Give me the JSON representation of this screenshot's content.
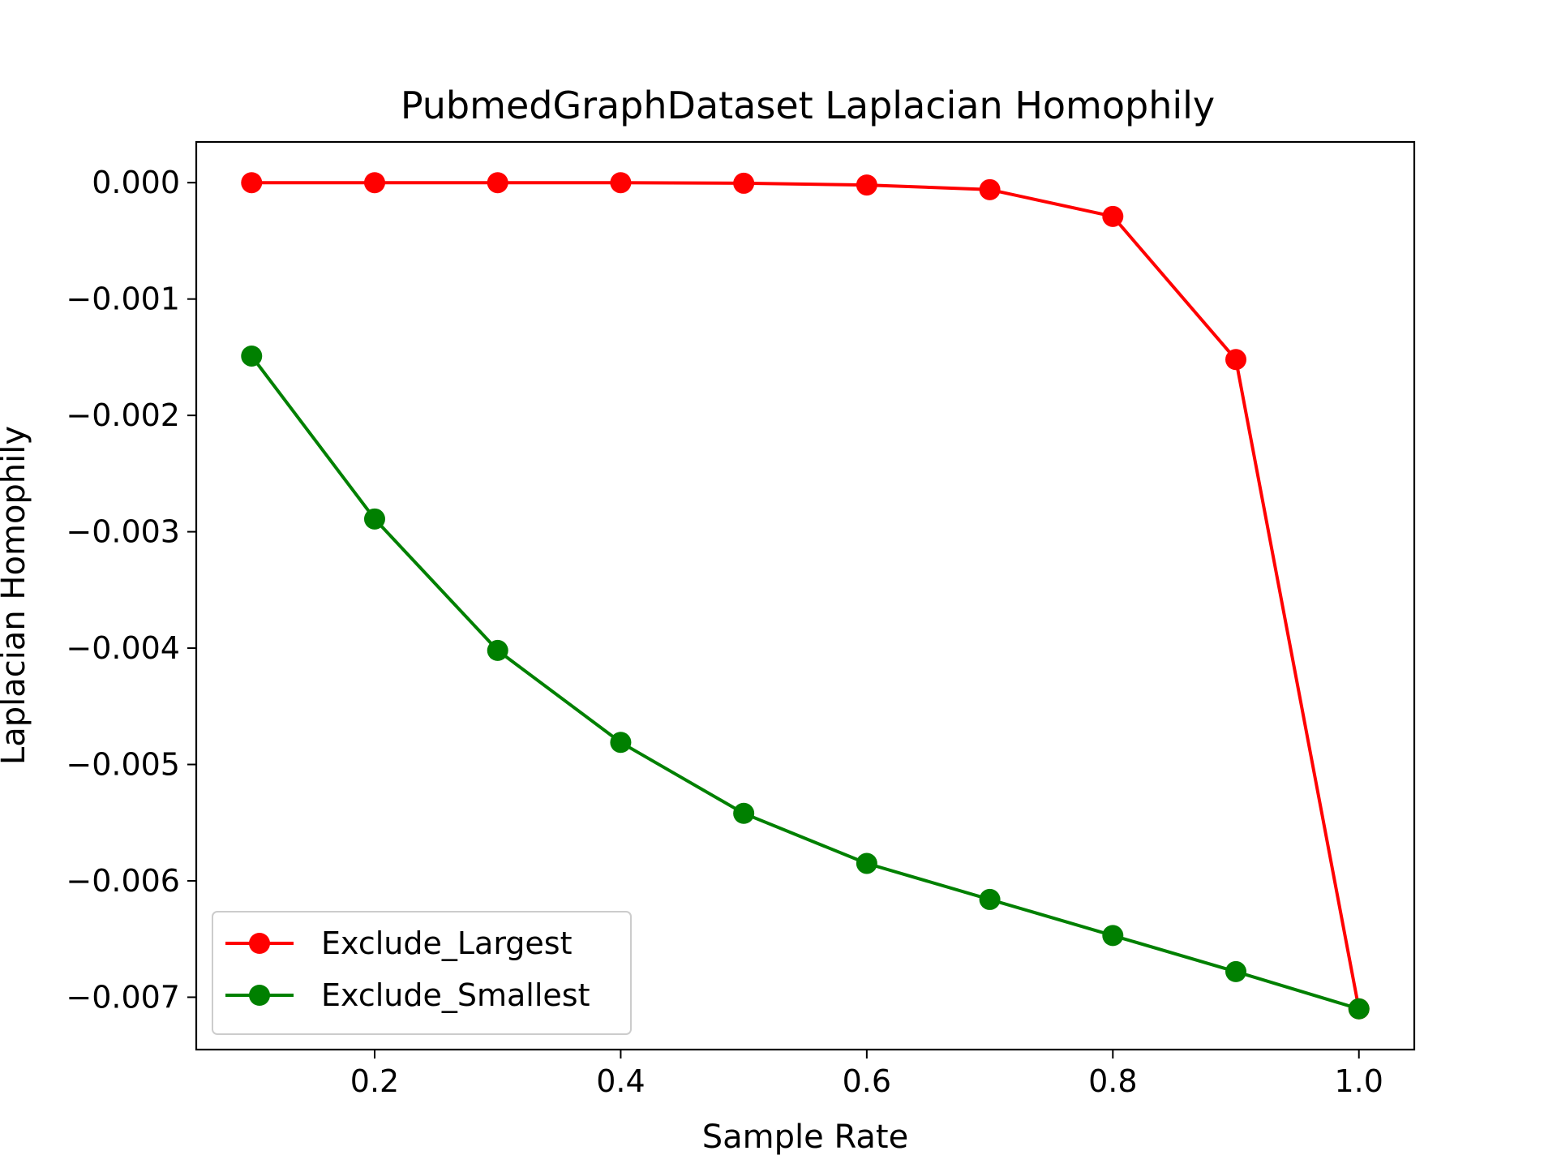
{
  "chart_data": {
    "type": "line",
    "title": "PubmedGraphDataset Laplacian Homophily",
    "xlabel": "Sample Rate",
    "ylabel": "Laplacian Homophily",
    "x": [
      0.1,
      0.2,
      0.3,
      0.4,
      0.5,
      0.6,
      0.7,
      0.8,
      0.9,
      1.0
    ],
    "xlim": [
      0.055,
      1.045
    ],
    "ylim": [
      -0.00745,
      0.00035
    ],
    "xticks": [
      0.2,
      0.4,
      0.6,
      0.8,
      1.0
    ],
    "xtick_labels": [
      "0.2",
      "0.4",
      "0.6",
      "0.8",
      "1.0"
    ],
    "yticks": [
      0.0,
      -0.001,
      -0.002,
      -0.003,
      -0.004,
      -0.005,
      -0.006,
      -0.007
    ],
    "ytick_labels": [
      "0.000",
      "−0.001",
      "−0.002",
      "−0.003",
      "−0.004",
      "−0.005",
      "−0.006",
      "−0.007"
    ],
    "grid": false,
    "legend_position": "lower-left",
    "series": [
      {
        "name": "Exclude_Largest",
        "color": "#ff0000",
        "marker": "circle",
        "values": [
          0.0,
          0.0,
          0.0,
          0.0,
          -5e-06,
          -2e-05,
          -6e-05,
          -0.00029,
          -0.00152,
          -0.0071
        ]
      },
      {
        "name": "Exclude_Smallest",
        "color": "#008000",
        "marker": "circle",
        "values": [
          -0.00149,
          -0.00289,
          -0.00402,
          -0.00481,
          -0.00542,
          -0.00585,
          -0.00616,
          -0.00647,
          -0.00678,
          -0.0071
        ]
      }
    ]
  }
}
